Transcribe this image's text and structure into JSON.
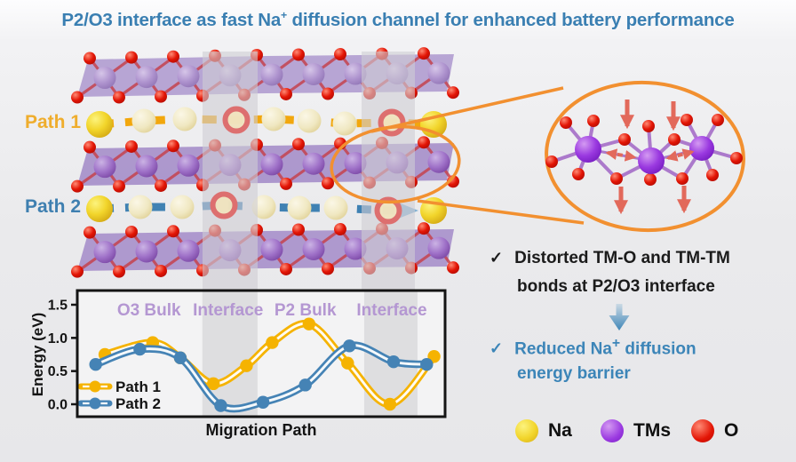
{
  "title": {
    "pre": "P2/O3 interface as fast Na",
    "sup": "+",
    "post": " diffusion channel for enhanced battery performance"
  },
  "paths": {
    "path1": "Path 1",
    "path2": "Path 2"
  },
  "bullets": {
    "check": "✓",
    "b1_line1": "Distorted TM-O and TM-TM",
    "b1_line2": "bonds at P2/O3 interface",
    "b2_pre": "Reduced Na",
    "b2_sup": "+",
    "b2_post": " diffusion",
    "b2_line2": "energy barrier"
  },
  "atom_legend": {
    "na": "Na",
    "tm": "TMs",
    "o": "O"
  },
  "colors": {
    "title_blue": "#3A7FB2",
    "path1_yellow": "#F2A70D",
    "path2_blue": "#3F81B3",
    "region_label_purple": "#B497D2",
    "callout_orange": "#F29030",
    "tm_purple": "#9A39E0",
    "o_red": "#E31505",
    "na_yellow": "#F2D52B"
  },
  "chart_data": {
    "type": "line",
    "title": "",
    "xlabel": "Migration Path",
    "ylabel": "Energy (eV)",
    "ylim": [
      -0.2,
      1.7
    ],
    "yticks": [
      0.0,
      0.5,
      1.0,
      1.5
    ],
    "grid": false,
    "legend_position": "lower left",
    "region_labels": [
      {
        "text": "O3 Bulk",
        "x_pct": 19.5
      },
      {
        "text": "Interface",
        "x_pct": 41
      },
      {
        "text": "P2 Bulk",
        "x_pct": 62
      },
      {
        "text": "Interface",
        "x_pct": 85.5
      }
    ],
    "interface_bands_pct": [
      [
        34,
        49
      ],
      [
        78,
        92.5
      ]
    ],
    "series": [
      {
        "name": "Path 1",
        "color": "#F5B301",
        "x_pct": [
          7.5,
          20.5,
          28,
          37,
          46,
          53,
          63,
          73.5,
          85,
          97
        ],
        "y": [
          0.75,
          0.93,
          0.7,
          0.31,
          0.58,
          0.93,
          1.21,
          0.62,
          0.0,
          0.72
        ]
      },
      {
        "name": "Path 2",
        "color": "#4583B5",
        "x_pct": [
          5,
          17,
          28,
          39,
          50.5,
          62,
          74,
          86,
          95
        ],
        "y": [
          0.6,
          0.83,
          0.7,
          -0.02,
          0.03,
          0.29,
          0.88,
          0.64,
          0.6
        ]
      }
    ]
  }
}
